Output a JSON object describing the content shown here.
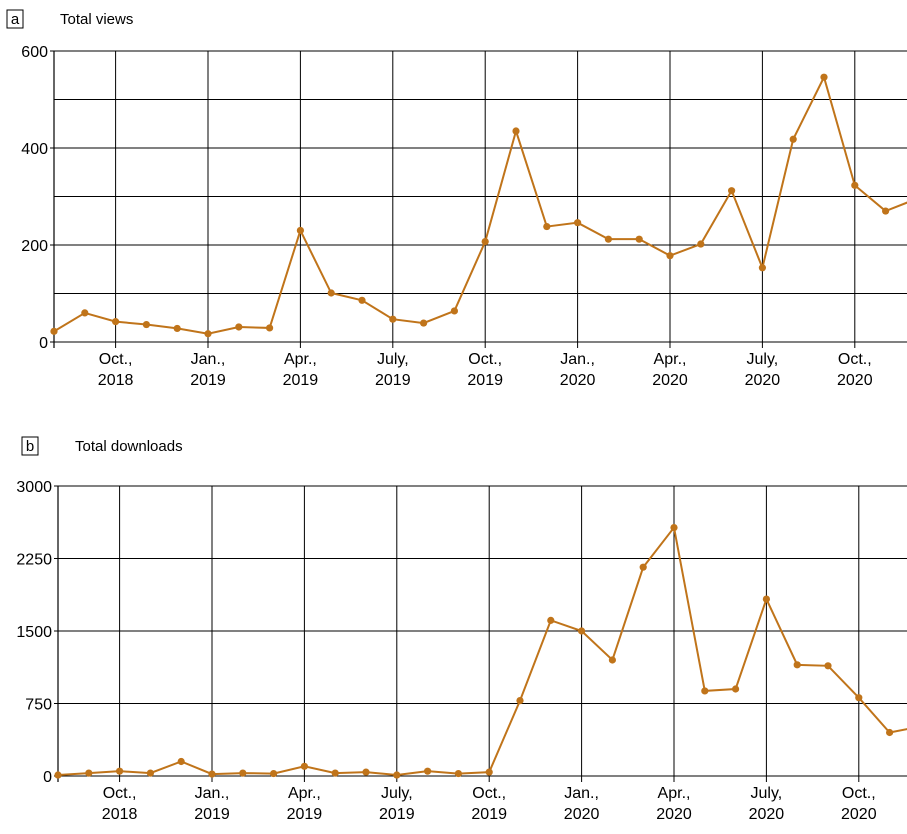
{
  "colors": {
    "line": "#c0741a",
    "grid": "#000000"
  },
  "chart_data": [
    {
      "panel_label": "a",
      "title": "Total views",
      "type": "line",
      "xlabel": "",
      "ylabel": "",
      "ylim": [
        0,
        600
      ],
      "yticks": [
        0,
        200,
        400,
        600
      ],
      "y_gridlines": [
        0,
        100,
        200,
        300,
        400,
        500,
        600
      ],
      "x_ticks": [
        {
          "label": [
            "Oct.,",
            "2018"
          ],
          "x": 2.0
        },
        {
          "label": [
            "Jan.,",
            "2019"
          ],
          "x": 5.0
        },
        {
          "label": [
            "Apr.,",
            "2019"
          ],
          "x": 8.0
        },
        {
          "label": [
            "July,",
            "2019"
          ],
          "x": 11.0
        },
        {
          "label": [
            "Oct.,",
            "2019"
          ],
          "x": 14.0
        },
        {
          "label": [
            "Jan.,",
            "2020"
          ],
          "x": 17.0
        },
        {
          "label": [
            "Apr.,",
            "2020"
          ],
          "x": 20.0
        },
        {
          "label": [
            "July,",
            "2020"
          ],
          "x": 23.0
        },
        {
          "label": [
            "Oct.,",
            "2020"
          ],
          "x": 26.0
        }
      ],
      "xlim": [
        0,
        27.8
      ],
      "grid": true,
      "x": [
        0,
        1,
        2,
        3,
        4,
        5,
        6,
        7,
        8,
        9,
        10,
        11,
        12,
        13,
        14,
        15,
        16,
        17,
        18,
        19,
        20,
        21,
        22,
        23,
        24,
        25,
        26,
        27,
        27.8
      ],
      "series": [
        {
          "values": [
            22,
            60,
            42,
            36,
            28,
            17,
            31,
            29,
            230,
            101,
            86,
            47,
            39,
            64,
            207,
            435,
            238,
            246,
            212,
            212,
            178,
            202,
            312,
            153,
            418,
            546,
            323,
            270,
            290
          ],
          "color": "#c0741a"
        }
      ]
    },
    {
      "panel_label": "b",
      "title": "Total downloads",
      "type": "line",
      "xlabel": "",
      "ylabel": "",
      "ylim": [
        0,
        3000
      ],
      "yticks": [
        0,
        750,
        1500,
        2250,
        3000
      ],
      "y_gridlines": [
        0,
        750,
        1500,
        2250,
        3000
      ],
      "x_ticks": [
        {
          "label": [
            "Oct.,",
            "2018"
          ],
          "x": 2.0
        },
        {
          "label": [
            "Jan.,",
            "2019"
          ],
          "x": 5.0
        },
        {
          "label": [
            "Apr.,",
            "2019"
          ],
          "x": 8.0
        },
        {
          "label": [
            "July,",
            "2019"
          ],
          "x": 11.0
        },
        {
          "label": [
            "Oct.,",
            "2019"
          ],
          "x": 14.0
        },
        {
          "label": [
            "Jan.,",
            "2020"
          ],
          "x": 17.0
        },
        {
          "label": [
            "Apr.,",
            "2020"
          ],
          "x": 20.0
        },
        {
          "label": [
            "July,",
            "2020"
          ],
          "x": 23.0
        },
        {
          "label": [
            "Oct.,",
            "2020"
          ],
          "x": 26.0
        }
      ],
      "xlim": [
        0,
        27.8
      ],
      "grid": true,
      "x": [
        0,
        1,
        2,
        3,
        4,
        5,
        6,
        7,
        8,
        9,
        10,
        11,
        12,
        13,
        14,
        15,
        16,
        17,
        18,
        19,
        20,
        21,
        22,
        23,
        24,
        25,
        26,
        27,
        27.8
      ],
      "series": [
        {
          "values": [
            10,
            30,
            50,
            30,
            150,
            20,
            30,
            25,
            100,
            30,
            40,
            10,
            50,
            25,
            40,
            780,
            1610,
            1500,
            1200,
            2160,
            2570,
            880,
            900,
            1830,
            1150,
            1140,
            810,
            450,
            500
          ],
          "color": "#c0741a"
        }
      ]
    }
  ]
}
